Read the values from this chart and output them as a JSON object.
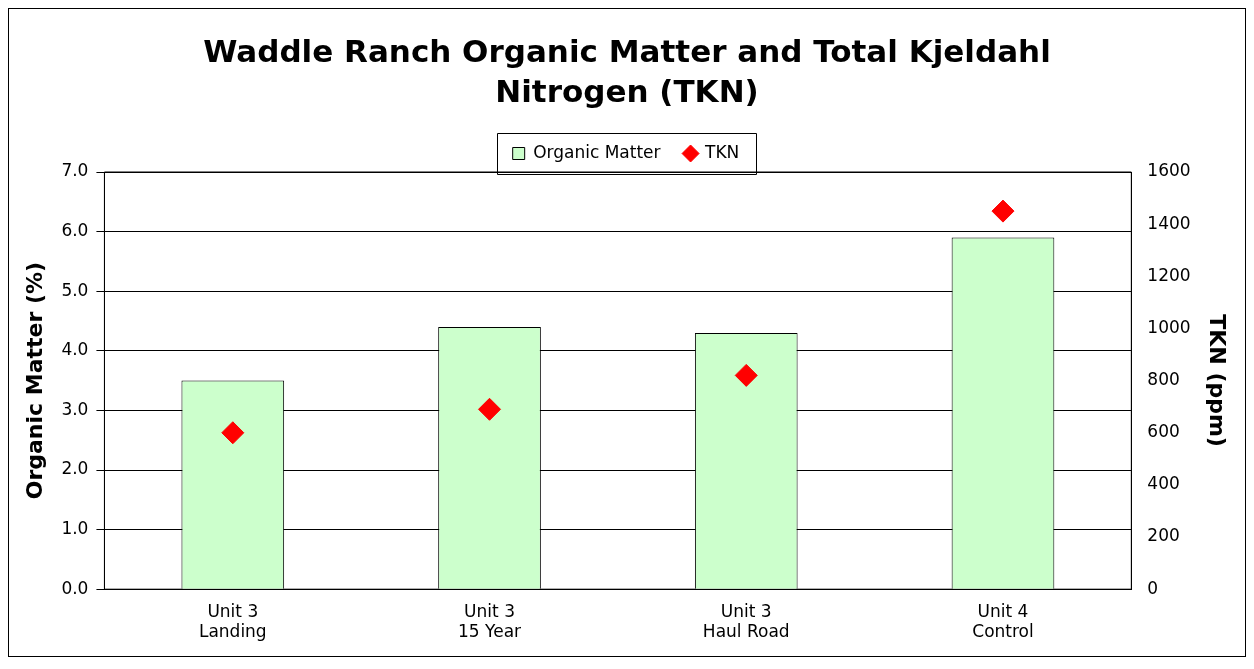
{
  "chart_data": {
    "type": "bar",
    "title": "Waddle Ranch Organic Matter and Total Kjeldahl Nitrogen (TKN)",
    "ylabel": "Organic Matter (%)",
    "y2label": "TKN (ppm)",
    "categories": [
      "Unit 3\nLanding",
      "Unit 3\n15 Year",
      "Unit 3\nHaul Road",
      "Unit 4\nControl"
    ],
    "series": [
      {
        "name": "Organic Matter",
        "color": "#ccffcc",
        "values": [
          3.5,
          4.4,
          4.3,
          5.9
        ]
      },
      {
        "name": "TKN",
        "type": "scatter",
        "axis": "y2",
        "color": "#ff0000",
        "marker": "diamond",
        "values": [
          600,
          690,
          820,
          1450
        ]
      }
    ],
    "ylim": [
      0,
      7
    ],
    "yticks": [
      {
        "value": 0,
        "label": "0.0"
      },
      {
        "value": 1,
        "label": "1.0"
      },
      {
        "value": 2,
        "label": "2.0"
      },
      {
        "value": 3,
        "label": "3.0"
      },
      {
        "value": 4,
        "label": "4.0"
      },
      {
        "value": 5,
        "label": "5.0"
      },
      {
        "value": 6,
        "label": "6.0"
      },
      {
        "value": 7,
        "label": "7.0"
      }
    ],
    "y2lim": [
      0,
      1600
    ],
    "y2ticks": [
      0,
      200,
      400,
      600,
      800,
      1000,
      1200,
      1400,
      1600
    ],
    "grid": "y",
    "legend": "top"
  }
}
